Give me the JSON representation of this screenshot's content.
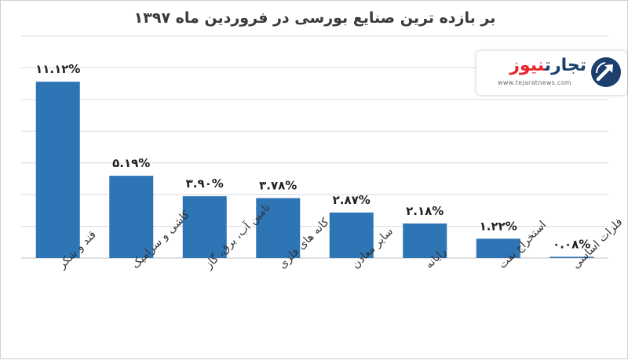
{
  "chart_data": {
    "type": "bar",
    "title": "بر بازده ترین صنایع بورسی در فروردین ماه ۱۳۹۷",
    "categories": [
      "قند و شکر",
      "کاشی و سرامیک",
      "تامین آب، برق، گاز",
      "کانه های فلزی",
      "سایر معادن",
      "رایانه",
      "استخراج نفت",
      "فلزات اساسی"
    ],
    "values": [
      11.12,
      5.19,
      3.9,
      3.78,
      2.87,
      2.18,
      1.22,
      0.08
    ],
    "data_labels": [
      "۱۱.۱۲%",
      "۵.۱۹%",
      "۳.۹۰%",
      "۳.۷۸%",
      "۲.۸۷%",
      "۲.۱۸%",
      "۱.۲۲%",
      "۰.۰۸%"
    ],
    "ylim": [
      0,
      14
    ],
    "grid": true,
    "bar_color": "#2e75b6",
    "grid_color": "#d9d9d9"
  },
  "logo": {
    "name_part1": "تجارت",
    "name_part2": "نیوز",
    "url": "www.tejaratnews.com",
    "color_primary": "#1c3f6e",
    "color_accent": "#e7252b"
  }
}
